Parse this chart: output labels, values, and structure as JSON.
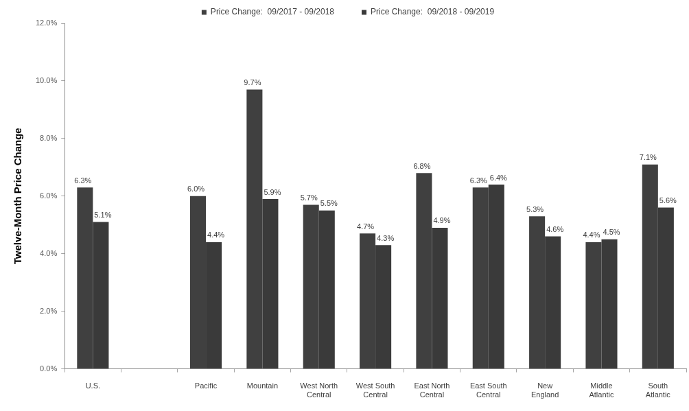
{
  "chart_data": {
    "type": "bar",
    "ylabel": "Twelve-Month Price Change",
    "categories": [
      "U.S.",
      null,
      "Pacific",
      "Mountain",
      "West North Central",
      "West South Central",
      "East North Central",
      "East South Central",
      "New England",
      "Middle Atlantic",
      "South Atlantic"
    ],
    "series": [
      {
        "name": "Price Change:  09/2017 - 09/2018",
        "color": "#404040",
        "values": [
          6.3,
          null,
          6.0,
          9.7,
          5.7,
          4.7,
          6.8,
          6.3,
          5.3,
          4.4,
          7.1
        ],
        "value_labels": [
          "6.3%",
          null,
          "6.0%",
          "9.7%",
          "5.7%",
          "4.7%",
          "6.8%",
          "6.3%",
          "5.3%",
          "4.4%",
          "7.1%"
        ]
      },
      {
        "name": "Price Change:  09/2018 - 09/2019",
        "color": "#3a3a3a",
        "values": [
          5.1,
          null,
          4.4,
          5.9,
          5.5,
          4.3,
          4.9,
          6.4,
          4.6,
          4.5,
          5.6
        ],
        "value_labels": [
          "5.1%",
          null,
          "4.4%",
          "5.9%",
          "5.5%",
          "4.3%",
          "4.9%",
          "6.4%",
          "4.6%",
          "4.5%",
          "5.6%"
        ]
      }
    ],
    "ylim": [
      0,
      12
    ],
    "yticks": [
      {
        "value": 0,
        "label": "0.0%"
      },
      {
        "value": 2,
        "label": "2.0%"
      },
      {
        "value": 4,
        "label": "4.0%"
      },
      {
        "value": 6,
        "label": "6.0%"
      },
      {
        "value": 8,
        "label": "8.0%"
      },
      {
        "value": 10,
        "label": "10.0%"
      },
      {
        "value": 12,
        "label": "12.0%"
      }
    ],
    "grid": false,
    "legend": "top"
  }
}
